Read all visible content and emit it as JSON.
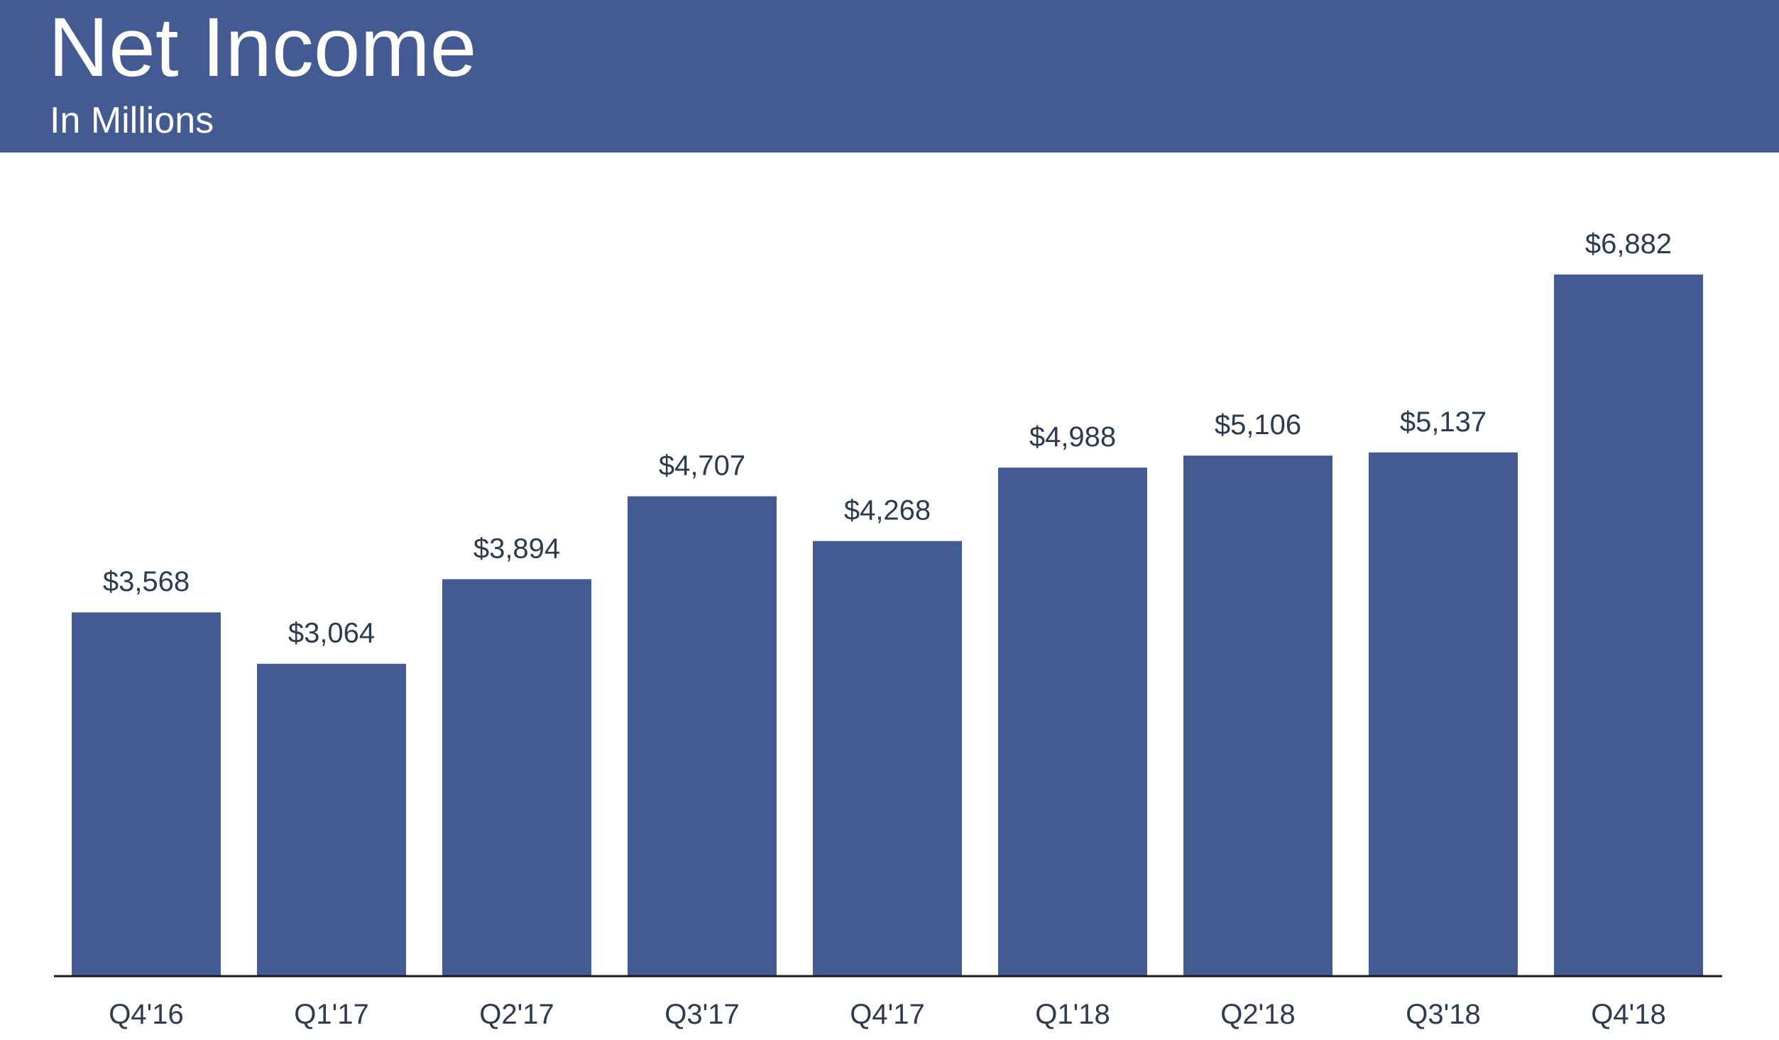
{
  "header": {
    "title": "Net Income",
    "subtitle": "In Millions"
  },
  "colors": {
    "header_bg": "#435b92",
    "bar": "#435b92",
    "axis": "#1a1a1a",
    "text": "#2e3a4f"
  },
  "chart_data": {
    "type": "bar",
    "title": "Net Income",
    "subtitle": "In Millions",
    "categories": [
      "Q4'16",
      "Q1'17",
      "Q2'17",
      "Q3'17",
      "Q4'17",
      "Q1'18",
      "Q2'18",
      "Q3'18",
      "Q4'18"
    ],
    "values": [
      3568,
      3064,
      3894,
      4707,
      4268,
      4988,
      5106,
      5137,
      6882
    ],
    "data_labels": [
      "$3,568",
      "$3,064",
      "$3,894",
      "$4,707",
      "$4,268",
      "$4,988",
      "$5,106",
      "$5,137",
      "$6,882"
    ],
    "ylim": [
      0,
      6882
    ],
    "grid": false,
    "legend": "none"
  }
}
